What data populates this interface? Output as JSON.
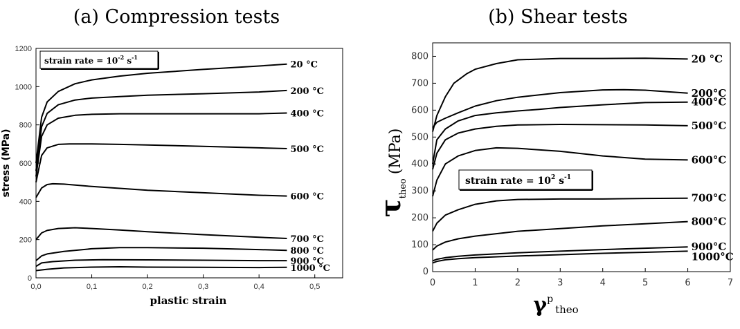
{
  "chart_data": [
    {
      "type": "line",
      "title": "(a) Compression tests",
      "xlabel": "plastic strain",
      "ylabel": "stress (MPa)",
      "xlim": [
        0,
        0.55
      ],
      "ylim": [
        0,
        1200
      ],
      "xticks": [
        "0,0",
        "0,1",
        "0,2",
        "0,3",
        "0,4",
        "0,5"
      ],
      "yticks": [
        "0",
        "200",
        "400",
        "600",
        "800",
        "1000",
        "1200"
      ],
      "annotation": {
        "base": "strain rate = 10",
        "exp": "-2",
        "unit": " s",
        "unit_exp": "-1"
      },
      "series": [
        {
          "name": "20 °C",
          "x": [
            0,
            0.01,
            0.02,
            0.04,
            0.07,
            0.1,
            0.15,
            0.2,
            0.3,
            0.4,
            0.45
          ],
          "y": [
            600,
            840,
            920,
            975,
            1015,
            1035,
            1055,
            1070,
            1090,
            1108,
            1118
          ]
        },
        {
          "name": "200 °C",
          "x": [
            0,
            0.01,
            0.02,
            0.04,
            0.07,
            0.1,
            0.15,
            0.2,
            0.3,
            0.4,
            0.45
          ],
          "y": [
            560,
            790,
            860,
            905,
            930,
            940,
            948,
            955,
            963,
            972,
            980
          ]
        },
        {
          "name": "400 °C",
          "x": [
            0,
            0.01,
            0.02,
            0.04,
            0.07,
            0.1,
            0.15,
            0.2,
            0.3,
            0.4,
            0.45
          ],
          "y": [
            530,
            740,
            800,
            835,
            850,
            855,
            858,
            858,
            858,
            858,
            862
          ]
        },
        {
          "name": "500 °C",
          "x": [
            0,
            0.01,
            0.02,
            0.04,
            0.06,
            0.1,
            0.15,
            0.2,
            0.3,
            0.4,
            0.45
          ],
          "y": [
            500,
            640,
            680,
            698,
            700,
            700,
            698,
            695,
            688,
            680,
            676
          ]
        },
        {
          "name": "600 °C",
          "x": [
            0,
            0.01,
            0.02,
            0.03,
            0.05,
            0.1,
            0.15,
            0.2,
            0.3,
            0.4,
            0.45
          ],
          "y": [
            420,
            470,
            488,
            492,
            490,
            478,
            468,
            458,
            445,
            432,
            428
          ]
        },
        {
          "name": "700 °C",
          "x": [
            0,
            0.01,
            0.02,
            0.04,
            0.07,
            0.1,
            0.15,
            0.2,
            0.3,
            0.4,
            0.45
          ],
          "y": [
            200,
            235,
            248,
            258,
            262,
            258,
            250,
            241,
            226,
            212,
            206
          ]
        },
        {
          "name": "800 °C",
          "x": [
            0,
            0.01,
            0.02,
            0.05,
            0.1,
            0.15,
            0.2,
            0.3,
            0.4,
            0.45
          ],
          "y": [
            90,
            115,
            125,
            138,
            152,
            158,
            158,
            155,
            148,
            144
          ]
        },
        {
          "name": "900 °C",
          "x": [
            0,
            0.01,
            0.03,
            0.07,
            0.12,
            0.2,
            0.3,
            0.4,
            0.45
          ],
          "y": [
            60,
            78,
            85,
            92,
            95,
            94,
            92,
            90,
            90
          ]
        },
        {
          "name": "1000 °C",
          "x": [
            0,
            0.02,
            0.05,
            0.1,
            0.15,
            0.2,
            0.3,
            0.4,
            0.45
          ],
          "y": [
            38,
            45,
            52,
            56,
            58,
            56,
            55,
            54,
            55
          ]
        }
      ]
    },
    {
      "type": "line",
      "title": "(b) Shear tests",
      "xlabel": {
        "main": "γ",
        "sup": "p",
        "sub": "theo"
      },
      "ylabel": {
        "main": "τ",
        "sub": "theo",
        "unit": "(MPa)"
      },
      "xlim": [
        0,
        7
      ],
      "ylim": [
        0,
        850
      ],
      "xticks": [
        "0",
        "1",
        "2",
        "3",
        "4",
        "5",
        "6",
        "7"
      ],
      "yticks": [
        "0",
        "100",
        "200",
        "300",
        "400",
        "500",
        "600",
        "700",
        "800"
      ],
      "annotation": {
        "base": "strain rate = 10",
        "exp": "2",
        "unit": " s",
        "unit_exp": "-1"
      },
      "series": [
        {
          "name": "20 °C",
          "x": [
            0,
            0.1,
            0.3,
            0.5,
            0.8,
            1,
            1.5,
            2,
            3,
            4,
            5,
            6
          ],
          "y": [
            520,
            580,
            650,
            700,
            735,
            752,
            773,
            787,
            792,
            792,
            793,
            790
          ]
        },
        {
          "name": "200°C",
          "x": [
            0,
            0.1,
            0.3,
            0.6,
            1,
            1.5,
            2,
            3,
            4,
            4.5,
            5,
            6
          ],
          "y": [
            535,
            555,
            570,
            590,
            615,
            635,
            648,
            665,
            675,
            676,
            674,
            663
          ]
        },
        {
          "name": "400°C",
          "x": [
            0,
            0.1,
            0.3,
            0.6,
            1,
            1.5,
            2,
            2.5,
            3,
            4,
            5,
            6
          ],
          "y": [
            400,
            490,
            530,
            560,
            580,
            590,
            597,
            603,
            610,
            620,
            628,
            630
          ]
        },
        {
          "name": "500°C",
          "x": [
            0,
            0.1,
            0.3,
            0.6,
            1,
            1.5,
            2,
            3,
            4,
            5,
            6
          ],
          "y": [
            380,
            440,
            490,
            515,
            530,
            540,
            545,
            547,
            546,
            545,
            542
          ]
        },
        {
          "name": "600°C",
          "x": [
            0,
            0.1,
            0.3,
            0.6,
            1,
            1.5,
            2,
            3,
            4,
            5,
            6
          ],
          "y": [
            280,
            340,
            400,
            430,
            450,
            460,
            458,
            447,
            430,
            418,
            415
          ]
        },
        {
          "name": "700°C",
          "x": [
            0,
            0.1,
            0.3,
            0.6,
            1,
            1.5,
            2,
            3,
            4,
            5,
            6
          ],
          "y": [
            150,
            180,
            210,
            230,
            250,
            263,
            268,
            270,
            270,
            272,
            273
          ]
        },
        {
          "name": "800°C",
          "x": [
            0,
            0.1,
            0.3,
            0.6,
            1,
            2,
            3,
            4,
            5,
            6
          ],
          "y": [
            80,
            95,
            110,
            122,
            132,
            150,
            160,
            170,
            178,
            186
          ]
        },
        {
          "name": "900°C",
          "x": [
            0,
            0.1,
            0.3,
            0.6,
            1,
            2,
            3,
            4,
            5,
            6
          ],
          "y": [
            40,
            46,
            52,
            57,
            62,
            70,
            76,
            82,
            87,
            92
          ]
        },
        {
          "name": "1000°C",
          "x": [
            0,
            0.1,
            0.3,
            0.6,
            1,
            2,
            3,
            4,
            5,
            6
          ],
          "y": [
            32,
            38,
            44,
            48,
            52,
            58,
            63,
            68,
            72,
            76
          ]
        }
      ]
    }
  ]
}
